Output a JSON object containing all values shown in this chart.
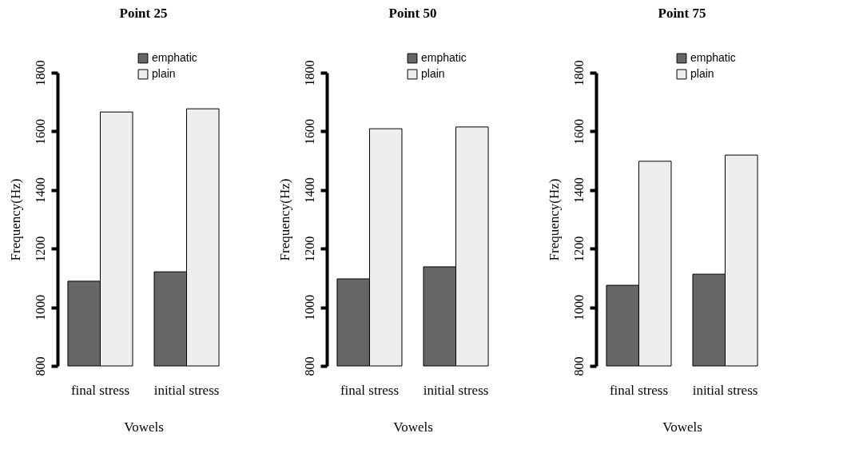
{
  "chart_data": [
    {
      "type": "bar",
      "title": "Point 25",
      "xlabel": "Vowels",
      "ylabel": "Frequency(Hz)",
      "categories": [
        "final stress",
        "initial stress"
      ],
      "series": [
        {
          "name": "emphatic",
          "color": "#666666",
          "values": [
            1089,
            1121
          ]
        },
        {
          "name": "plain",
          "color": "#eeeeee",
          "values": [
            1666,
            1677
          ]
        }
      ],
      "ylim": [
        800,
        1800
      ],
      "yticks": [
        800,
        1000,
        1200,
        1400,
        1600,
        1800
      ],
      "legend": "top right",
      "grid": false
    },
    {
      "type": "bar",
      "title": "Point 50",
      "xlabel": "Vowels",
      "ylabel": "Frequency(Hz)",
      "categories": [
        "final stress",
        "initial stress"
      ],
      "series": [
        {
          "name": "emphatic",
          "color": "#666666",
          "values": [
            1097,
            1138
          ]
        },
        {
          "name": "plain",
          "color": "#eeeeee",
          "values": [
            1609,
            1615
          ]
        }
      ],
      "ylim": [
        800,
        1800
      ],
      "yticks": [
        800,
        1000,
        1200,
        1400,
        1600,
        1800
      ],
      "legend": "top right",
      "grid": false
    },
    {
      "type": "bar",
      "title": "Point 75",
      "xlabel": "Vowels",
      "ylabel": "Frequency(Hz)",
      "categories": [
        "final stress",
        "initial stress"
      ],
      "series": [
        {
          "name": "emphatic",
          "color": "#666666",
          "values": [
            1075,
            1113
          ]
        },
        {
          "name": "plain",
          "color": "#eeeeee",
          "values": [
            1498,
            1519
          ]
        }
      ],
      "ylim": [
        800,
        1800
      ],
      "yticks": [
        800,
        1000,
        1200,
        1400,
        1600,
        1800
      ],
      "legend": "top right",
      "grid": false
    }
  ]
}
